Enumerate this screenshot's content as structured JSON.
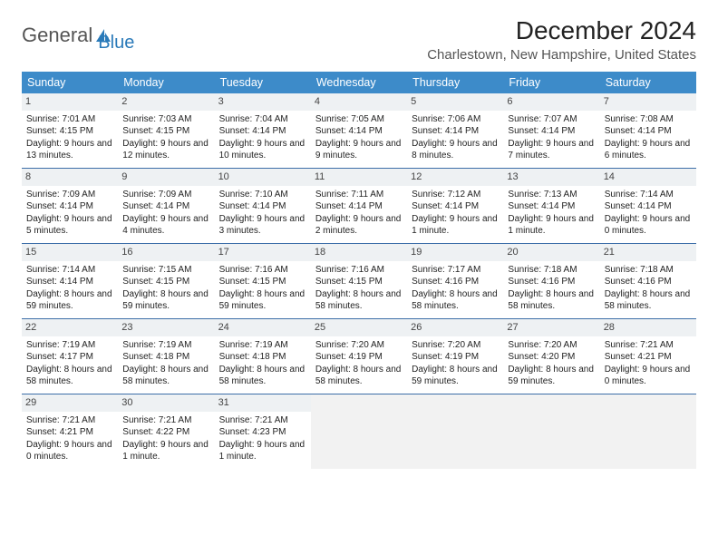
{
  "logo": {
    "text1": "General",
    "text2": "Blue"
  },
  "title": "December 2024",
  "location": "Charlestown, New Hampshire, United States",
  "colors": {
    "header_bg": "#3d8bc9",
    "header_text": "#ffffff",
    "week_divider": "#3d6ea8",
    "daynum_bg": "#eef1f3",
    "empty_bg": "#f2f2f2",
    "logo_blue": "#2a7ab9"
  },
  "day_headers": [
    "Sunday",
    "Monday",
    "Tuesday",
    "Wednesday",
    "Thursday",
    "Friday",
    "Saturday"
  ],
  "weeks": [
    [
      {
        "n": "1",
        "sr": "7:01 AM",
        "ss": "4:15 PM",
        "dl": "9 hours and 13 minutes."
      },
      {
        "n": "2",
        "sr": "7:03 AM",
        "ss": "4:15 PM",
        "dl": "9 hours and 12 minutes."
      },
      {
        "n": "3",
        "sr": "7:04 AM",
        "ss": "4:14 PM",
        "dl": "9 hours and 10 minutes."
      },
      {
        "n": "4",
        "sr": "7:05 AM",
        "ss": "4:14 PM",
        "dl": "9 hours and 9 minutes."
      },
      {
        "n": "5",
        "sr": "7:06 AM",
        "ss": "4:14 PM",
        "dl": "9 hours and 8 minutes."
      },
      {
        "n": "6",
        "sr": "7:07 AM",
        "ss": "4:14 PM",
        "dl": "9 hours and 7 minutes."
      },
      {
        "n": "7",
        "sr": "7:08 AM",
        "ss": "4:14 PM",
        "dl": "9 hours and 6 minutes."
      }
    ],
    [
      {
        "n": "8",
        "sr": "7:09 AM",
        "ss": "4:14 PM",
        "dl": "9 hours and 5 minutes."
      },
      {
        "n": "9",
        "sr": "7:09 AM",
        "ss": "4:14 PM",
        "dl": "9 hours and 4 minutes."
      },
      {
        "n": "10",
        "sr": "7:10 AM",
        "ss": "4:14 PM",
        "dl": "9 hours and 3 minutes."
      },
      {
        "n": "11",
        "sr": "7:11 AM",
        "ss": "4:14 PM",
        "dl": "9 hours and 2 minutes."
      },
      {
        "n": "12",
        "sr": "7:12 AM",
        "ss": "4:14 PM",
        "dl": "9 hours and 1 minute."
      },
      {
        "n": "13",
        "sr": "7:13 AM",
        "ss": "4:14 PM",
        "dl": "9 hours and 1 minute."
      },
      {
        "n": "14",
        "sr": "7:14 AM",
        "ss": "4:14 PM",
        "dl": "9 hours and 0 minutes."
      }
    ],
    [
      {
        "n": "15",
        "sr": "7:14 AM",
        "ss": "4:14 PM",
        "dl": "8 hours and 59 minutes."
      },
      {
        "n": "16",
        "sr": "7:15 AM",
        "ss": "4:15 PM",
        "dl": "8 hours and 59 minutes."
      },
      {
        "n": "17",
        "sr": "7:16 AM",
        "ss": "4:15 PM",
        "dl": "8 hours and 59 minutes."
      },
      {
        "n": "18",
        "sr": "7:16 AM",
        "ss": "4:15 PM",
        "dl": "8 hours and 58 minutes."
      },
      {
        "n": "19",
        "sr": "7:17 AM",
        "ss": "4:16 PM",
        "dl": "8 hours and 58 minutes."
      },
      {
        "n": "20",
        "sr": "7:18 AM",
        "ss": "4:16 PM",
        "dl": "8 hours and 58 minutes."
      },
      {
        "n": "21",
        "sr": "7:18 AM",
        "ss": "4:16 PM",
        "dl": "8 hours and 58 minutes."
      }
    ],
    [
      {
        "n": "22",
        "sr": "7:19 AM",
        "ss": "4:17 PM",
        "dl": "8 hours and 58 minutes."
      },
      {
        "n": "23",
        "sr": "7:19 AM",
        "ss": "4:18 PM",
        "dl": "8 hours and 58 minutes."
      },
      {
        "n": "24",
        "sr": "7:19 AM",
        "ss": "4:18 PM",
        "dl": "8 hours and 58 minutes."
      },
      {
        "n": "25",
        "sr": "7:20 AM",
        "ss": "4:19 PM",
        "dl": "8 hours and 58 minutes."
      },
      {
        "n": "26",
        "sr": "7:20 AM",
        "ss": "4:19 PM",
        "dl": "8 hours and 59 minutes."
      },
      {
        "n": "27",
        "sr": "7:20 AM",
        "ss": "4:20 PM",
        "dl": "8 hours and 59 minutes."
      },
      {
        "n": "28",
        "sr": "7:21 AM",
        "ss": "4:21 PM",
        "dl": "9 hours and 0 minutes."
      }
    ],
    [
      {
        "n": "29",
        "sr": "7:21 AM",
        "ss": "4:21 PM",
        "dl": "9 hours and 0 minutes."
      },
      {
        "n": "30",
        "sr": "7:21 AM",
        "ss": "4:22 PM",
        "dl": "9 hours and 1 minute."
      },
      {
        "n": "31",
        "sr": "7:21 AM",
        "ss": "4:23 PM",
        "dl": "9 hours and 1 minute."
      },
      null,
      null,
      null,
      null
    ]
  ],
  "labels": {
    "sunrise": "Sunrise: ",
    "sunset": "Sunset: ",
    "daylight": "Daylight: "
  }
}
